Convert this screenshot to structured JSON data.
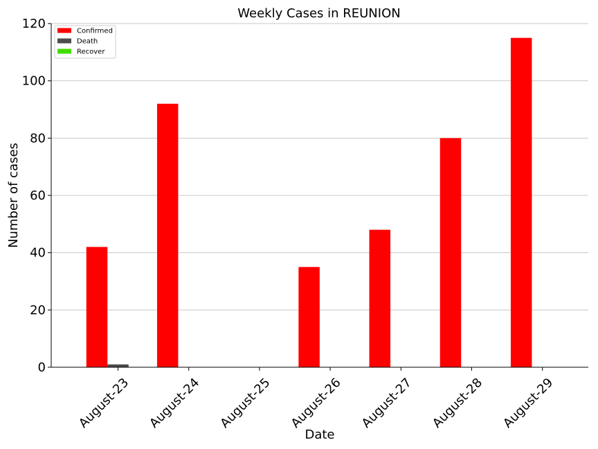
{
  "chart_data": {
    "type": "bar",
    "title": "Weekly Cases in REUNION",
    "xlabel": "Date",
    "ylabel": "Number of cases",
    "categories": [
      "August-23",
      "August-24",
      "August-25",
      "August-26",
      "August-27",
      "August-28",
      "August-29"
    ],
    "series": [
      {
        "name": "Confirmed",
        "color": "#ff0000",
        "values": [
          42,
          92,
          0,
          35,
          48,
          80,
          115
        ]
      },
      {
        "name": "Death",
        "color": "#4d4d4d",
        "values": [
          1,
          0,
          0,
          0,
          0,
          0,
          0
        ]
      },
      {
        "name": "Recover",
        "color": "#44dd00",
        "values": [
          0,
          0,
          0,
          0,
          0,
          0,
          0
        ]
      }
    ],
    "ylim": [
      0,
      120
    ],
    "yticks": [
      0,
      20,
      40,
      60,
      80,
      100,
      120
    ],
    "grid": "horizontal",
    "legend": "top-left"
  }
}
